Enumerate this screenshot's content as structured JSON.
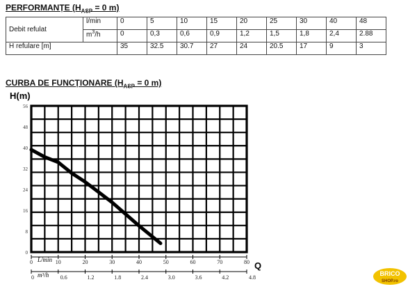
{
  "performance": {
    "title_main": "PERFORMANȚE (H",
    "title_sub": "ASP",
    "title_tail": " = 0 m)",
    "row_debit_label": "Debit refulat",
    "row_lmin_unit": "l/min",
    "row_m3h_unit_base": "m",
    "row_m3h_unit_sup": "3",
    "row_m3h_unit_tail": "/h",
    "row_h_label": "H refulare [m]",
    "lmin_values": [
      "0",
      "5",
      "10",
      "15",
      "20",
      "25",
      "30",
      "40",
      "48"
    ],
    "m3h_values": [
      "0",
      "0,3",
      "0,6",
      "0,9",
      "1,2",
      "1,5",
      "1,8",
      "2,4",
      "2.88"
    ],
    "h_values": [
      "35",
      "32.5",
      "30.7",
      "27",
      "24",
      "20.5",
      "17",
      "9",
      "3"
    ]
  },
  "curve_section": {
    "title_main": "CURBA DE FUNCȚIONARE (H",
    "title_sub": "ASP",
    "title_tail": " = 0 m)"
  },
  "chart_data": {
    "type": "line",
    "ylabel": "H(m)",
    "xlabel": "Q",
    "x_axis_unit": "L/min",
    "x2_axis_unit": "m³/h",
    "xlim": [
      0,
      80
    ],
    "ylim": [
      0,
      50
    ],
    "x_ticks": [
      "0",
      "10",
      "20",
      "30",
      "40",
      "50",
      "60",
      "70",
      "80"
    ],
    "x2_ticks": [
      "0",
      "0.6",
      "1.2",
      "1.8",
      "2.4",
      "3.0",
      "3.6",
      "4.2",
      "4.8"
    ],
    "y_ticks": [
      "0",
      "8",
      "16",
      "24",
      "32",
      "40",
      "48",
      "56"
    ],
    "grid": true,
    "series": [
      {
        "x": [
          0,
          5,
          10,
          15,
          20,
          25,
          30,
          40,
          48
        ],
        "y": [
          35,
          32.5,
          30.7,
          27,
          24,
          20.5,
          17,
          9,
          3
        ],
        "color": "#000000"
      }
    ]
  },
  "logo": {
    "text_line1": "BRICO",
    "text_line2": "SHOP.ro",
    "color": "#f2c200"
  }
}
